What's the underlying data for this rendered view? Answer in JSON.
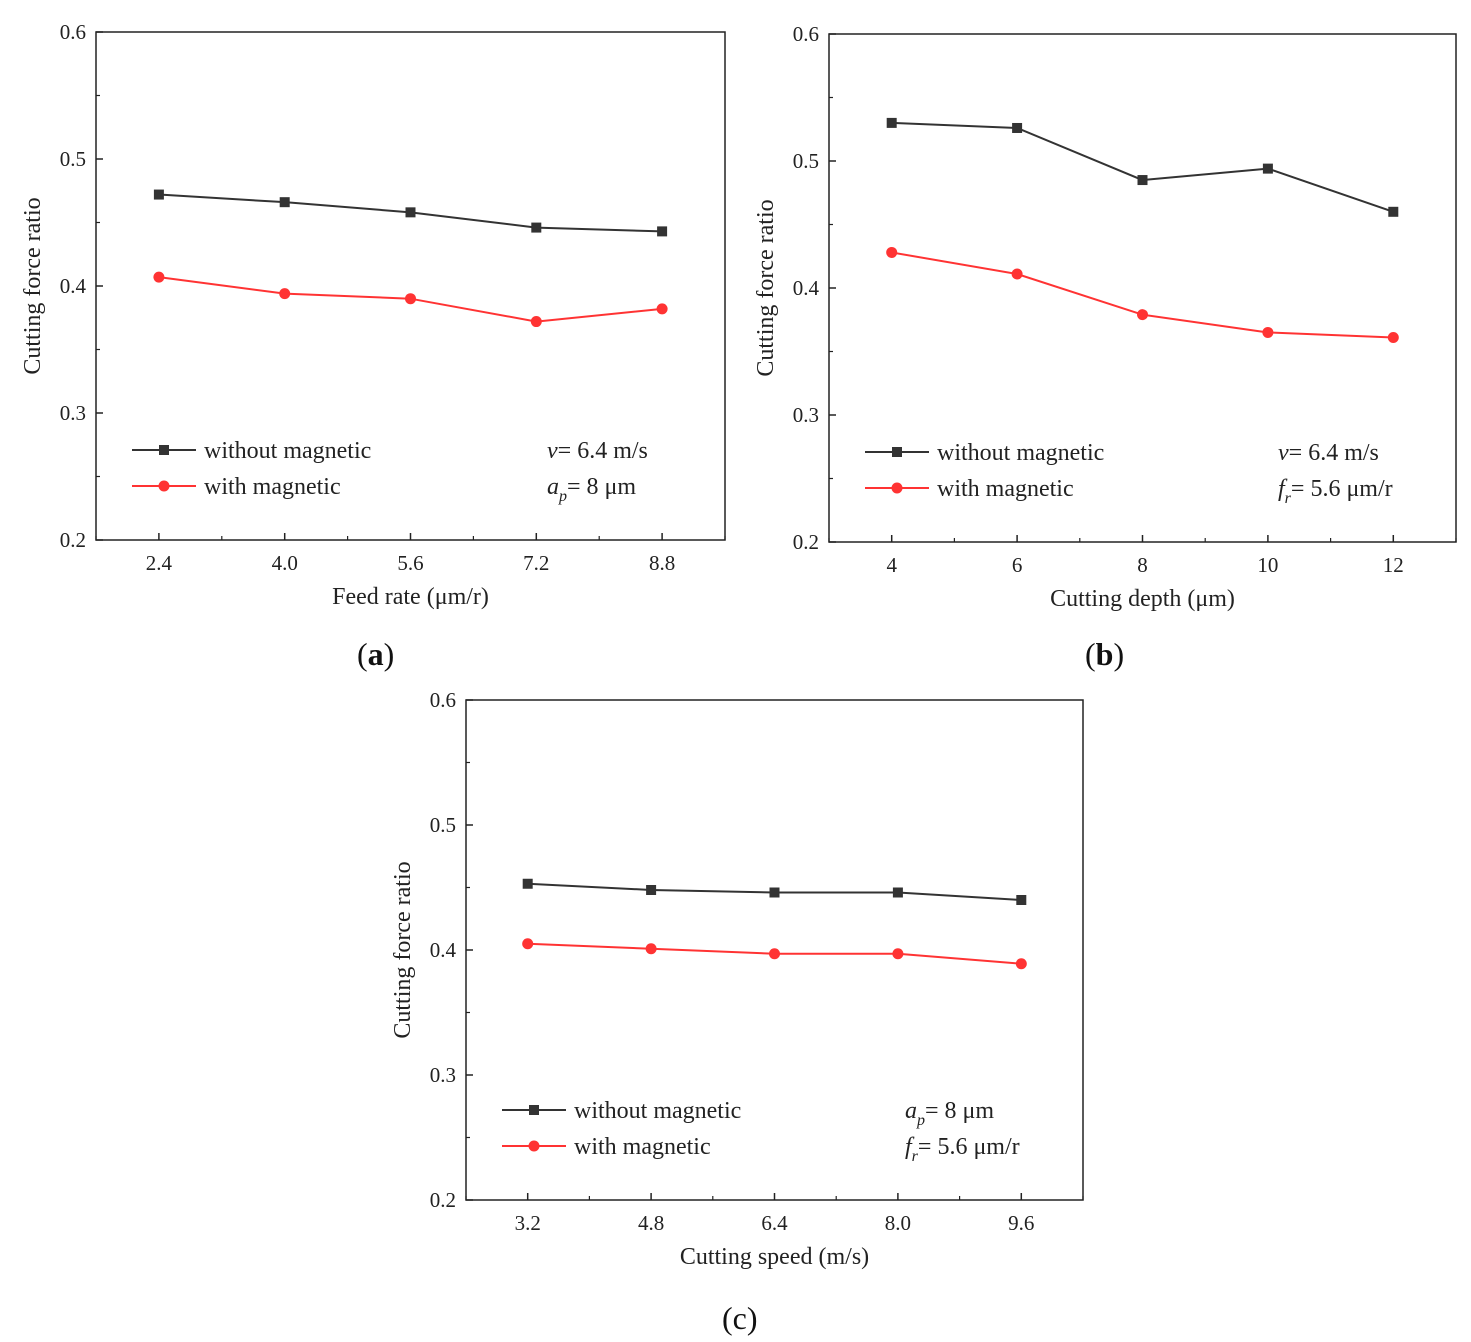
{
  "figure": {
    "panels": [
      {
        "label_open": "(",
        "label_letter": "a",
        "label_close": ")"
      },
      {
        "label_open": "(",
        "label_letter": "b",
        "label_close": ")"
      },
      {
        "label_open": "(",
        "label_letter": "c",
        "label_close": ")"
      }
    ]
  },
  "chart_data": [
    {
      "type": "line",
      "title": "",
      "xlabel": "Feed rate (μm/r)",
      "ylabel": "Cutting force ratio",
      "x": [
        2.4,
        4.0,
        5.6,
        7.2,
        8.8
      ],
      "x_tick_labels": [
        "2.4",
        "4.0",
        "5.6",
        "7.2",
        "8.8"
      ],
      "xlim": [
        1.6,
        9.6
      ],
      "ylim": [
        0.2,
        0.6
      ],
      "y_ticks": [
        "0.2",
        "0.3",
        "0.4",
        "0.5",
        "0.6"
      ],
      "legend_position": "bottom-left",
      "series": [
        {
          "name": "without magnetic",
          "marker": "square",
          "color": "#333333",
          "values": [
            0.472,
            0.466,
            0.458,
            0.446,
            0.443
          ]
        },
        {
          "name": "with magnetic",
          "marker": "circle",
          "color": "#ff3333",
          "values": [
            0.407,
            0.394,
            0.39,
            0.372,
            0.382
          ]
        }
      ],
      "annotations": [
        {
          "var": "v",
          "sub": "",
          "text": "= 6.4 m/s"
        },
        {
          "var": "a",
          "sub": "p",
          "text": "= 8 μm"
        }
      ]
    },
    {
      "type": "line",
      "title": "",
      "xlabel": "Cutting depth (μm)",
      "ylabel": "Cutting force ratio",
      "x": [
        4,
        6,
        8,
        10,
        12
      ],
      "x_tick_labels": [
        "4",
        "6",
        "8",
        "10",
        "12"
      ],
      "xlim": [
        3,
        13
      ],
      "ylim": [
        0.2,
        0.6
      ],
      "y_ticks": [
        "0.2",
        "0.3",
        "0.4",
        "0.5",
        "0.6"
      ],
      "legend_position": "bottom-left",
      "series": [
        {
          "name": "without magnetic",
          "marker": "square",
          "color": "#333333",
          "values": [
            0.53,
            0.526,
            0.485,
            0.494,
            0.46
          ]
        },
        {
          "name": "with magnetic",
          "marker": "circle",
          "color": "#ff3333",
          "values": [
            0.428,
            0.411,
            0.379,
            0.365,
            0.361
          ]
        }
      ],
      "annotations": [
        {
          "var": "v",
          "sub": "",
          "text": "= 6.4 m/s"
        },
        {
          "var": "f",
          "sub": "r",
          "text": "= 5.6 μm/r"
        }
      ]
    },
    {
      "type": "line",
      "title": "",
      "xlabel": "Cutting speed (m/s)",
      "ylabel": "Cutting force ratio",
      "x": [
        3.2,
        4.8,
        6.4,
        8.0,
        9.6
      ],
      "x_tick_labels": [
        "3.2",
        "4.8",
        "6.4",
        "8.0",
        "9.6"
      ],
      "xlim": [
        2.4,
        10.4
      ],
      "ylim": [
        0.2,
        0.6
      ],
      "y_ticks": [
        "0.2",
        "0.3",
        "0.4",
        "0.5",
        "0.6"
      ],
      "legend_position": "bottom-left",
      "series": [
        {
          "name": "without magnetic",
          "marker": "square",
          "color": "#333333",
          "values": [
            0.453,
            0.448,
            0.446,
            0.446,
            0.44
          ]
        },
        {
          "name": "with magnetic",
          "marker": "circle",
          "color": "#ff3333",
          "values": [
            0.405,
            0.401,
            0.397,
            0.397,
            0.389
          ]
        }
      ],
      "annotations": [
        {
          "var": "a",
          "sub": "p",
          "text": "= 8 μm"
        },
        {
          "var": "f",
          "sub": "r",
          "text": "= 5.6 μm/r"
        }
      ]
    }
  ]
}
